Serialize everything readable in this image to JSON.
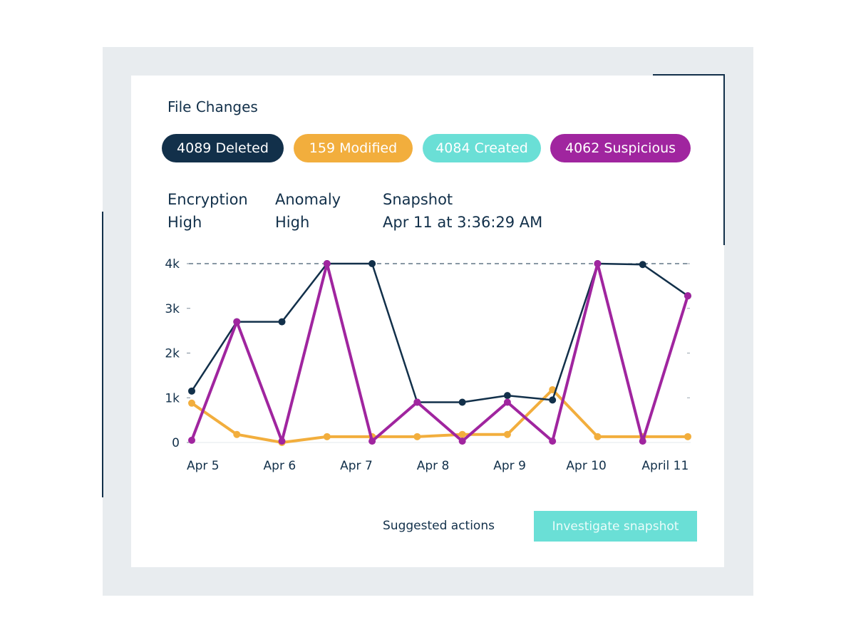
{
  "card": {
    "title": "File Changes"
  },
  "pills": {
    "deleted": "4089 Deleted",
    "modified": "159 Modified",
    "created": "4084 Created",
    "suspicious": "4062 Suspicious"
  },
  "meta": {
    "encryption_label": "Encryption",
    "encryption_value": "High",
    "anomaly_label": "Anomaly",
    "anomaly_value": "High",
    "snapshot_label": "Snapshot",
    "snapshot_value": "Apr 11 at 3:36:29 AM"
  },
  "actions": {
    "suggested_label": "Suggested actions",
    "investigate_label": "Investigate snapshot"
  },
  "colors": {
    "deleted": "#12304a",
    "modified": "#f2ae3d",
    "created": "#6adfd6",
    "suspicious": "#a0259f"
  },
  "chart_data": {
    "type": "line",
    "title": "",
    "xlabel": "",
    "ylabel": "",
    "ylim": [
      0,
      4000
    ],
    "y_ticks": [
      {
        "value": 0,
        "label": "0"
      },
      {
        "value": 1000,
        "label": "1k"
      },
      {
        "value": 2000,
        "label": "2k"
      },
      {
        "value": 3000,
        "label": "3k"
      },
      {
        "value": 4000,
        "label": "4k"
      }
    ],
    "reference_line": 4000,
    "x_count": 12,
    "x_ticks": [
      {
        "index": 0.25,
        "label": "Apr 5"
      },
      {
        "index": 1.95,
        "label": "Apr 6"
      },
      {
        "index": 3.65,
        "label": "Apr 7"
      },
      {
        "index": 5.35,
        "label": "Apr 8"
      },
      {
        "index": 7.05,
        "label": "Apr 9"
      },
      {
        "index": 8.75,
        "label": "Apr 10"
      },
      {
        "index": 10.5,
        "label": "April 11"
      }
    ],
    "series": [
      {
        "key": "modified",
        "color": "#f2ae3d",
        "width": 4,
        "values": [
          880,
          180,
          0,
          130,
          130,
          130,
          180,
          180,
          1180,
          130,
          130,
          130
        ]
      },
      {
        "key": "deleted",
        "color": "#12304a",
        "width": 2.5,
        "values": [
          1150,
          2700,
          2700,
          4000,
          4000,
          900,
          900,
          1050,
          950,
          4000,
          3980,
          3280
        ]
      },
      {
        "key": "suspicious",
        "color": "#a0259f",
        "width": 4,
        "values": [
          50,
          2700,
          30,
          4000,
          30,
          900,
          30,
          900,
          30,
          4000,
          30,
          3280
        ]
      }
    ]
  }
}
